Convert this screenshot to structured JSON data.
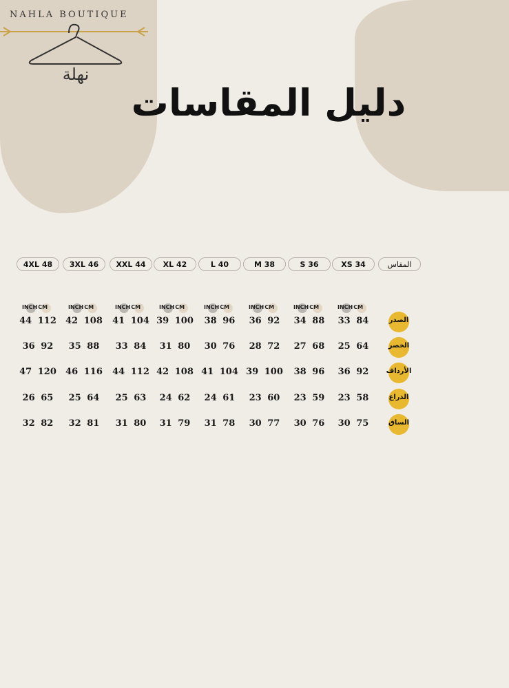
{
  "brand": {
    "name": "NAHLA BOUTIQUE",
    "arabic_name": "نهلة"
  },
  "title": "دليل المقاسات",
  "colors": {
    "background": "#f0ede7",
    "blob": "#ddd3c4",
    "accent": "#e8b830",
    "inch_dot": "#b9b6b1",
    "cm_dot": "#e3d6c4"
  },
  "header_label": "المقاس",
  "units": {
    "inch": "INCH",
    "cm": "CM"
  },
  "sizes": [
    "4XL 48",
    "3XL 46",
    "XXL 44",
    "XL 42",
    "L 40",
    "M 38",
    "S 36",
    "XS 34"
  ],
  "rows": [
    {
      "label": "الصدر",
      "values": [
        "44 112",
        "42 108",
        "41 104",
        "39 100",
        "38 96",
        "36 92",
        "34 88",
        "33 84"
      ]
    },
    {
      "label": "الخصر",
      "values": [
        "36 92",
        "35 88",
        "33 84",
        "31 80",
        "30 76",
        "28 72",
        "27 68",
        "25 64"
      ]
    },
    {
      "label": "الأرداف",
      "values": [
        "47 120",
        "46 116",
        "44 112",
        "42 108",
        "41 104",
        "39 100",
        "38 96",
        "36 92"
      ]
    },
    {
      "label": "الذراع",
      "values": [
        "26 65",
        "25 64",
        "25 63",
        "24 62",
        "24 61",
        "23 60",
        "23 59",
        "23 58"
      ]
    },
    {
      "label": "الساق",
      "values": [
        "32 82",
        "32 81",
        "31 80",
        "31 79",
        "31 78",
        "30 77",
        "30 76",
        "30 75"
      ]
    }
  ]
}
